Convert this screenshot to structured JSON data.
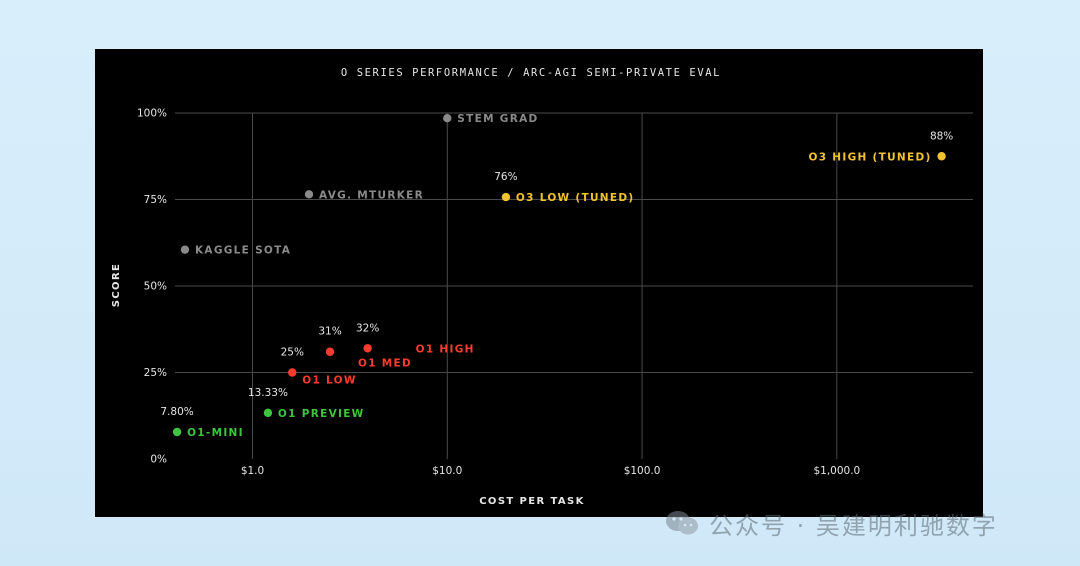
{
  "watermark": {
    "text": "公众号 · 吴建明利驰数字"
  },
  "chart_data": {
    "type": "scatter",
    "title": "O SERIES PERFORMANCE / ARC-AGI SEMI-PRIVATE EVAL",
    "xlabel": "COST PER TASK",
    "ylabel": "SCORE",
    "x_scale": "log",
    "xlim": [
      0.4,
      5000
    ],
    "ylim": [
      0,
      100
    ],
    "x_ticks": [
      {
        "value": 1,
        "label": "$1.0"
      },
      {
        "value": 10,
        "label": "$10.0"
      },
      {
        "value": 100,
        "label": "$100.0"
      },
      {
        "value": 1000,
        "label": "$1,000.0"
      }
    ],
    "y_ticks": [
      {
        "value": 0,
        "label": "0%"
      },
      {
        "value": 25,
        "label": "25%"
      },
      {
        "value": 50,
        "label": "50%"
      },
      {
        "value": 75,
        "label": "75%"
      },
      {
        "value": 100,
        "label": "100%"
      }
    ],
    "grid": true,
    "colors": {
      "baseline": "#8a8a8a",
      "o3": "#f2c230",
      "o1": "#ff3b30",
      "o1_mini": "#3ec43e"
    },
    "points": [
      {
        "label": "STEM GRAD",
        "x": 10,
        "y": 98.5,
        "value_label": "",
        "color": "#8a8a8a"
      },
      {
        "label": "AVG. MTURKER",
        "x": 1.95,
        "y": 76.5,
        "value_label": "",
        "color": "#8a8a8a"
      },
      {
        "label": "KAGGLE SOTA",
        "x": 0.45,
        "y": 60.5,
        "value_label": "",
        "color": "#8a8a8a"
      },
      {
        "label": "O3 HIGH (TUNED)",
        "x": 3450,
        "y": 87.5,
        "value_label": "88%",
        "color": "#f2c230"
      },
      {
        "label": "O3 LOW (TUNED)",
        "x": 20,
        "y": 75.7,
        "value_label": "76%",
        "color": "#f2c230"
      },
      {
        "label": "O1 HIGH",
        "x": 3.9,
        "y": 32,
        "value_label": "32%",
        "color": "#ff3b30"
      },
      {
        "label": "O1 MED",
        "x": 2.5,
        "y": 31,
        "value_label": "31%",
        "color": "#ff3b30"
      },
      {
        "label": "O1 LOW",
        "x": 1.6,
        "y": 25,
        "value_label": "25%",
        "color": "#ff3b30"
      },
      {
        "label": "O1 PREVIEW",
        "x": 1.2,
        "y": 13.33,
        "value_label": "13.33%",
        "color": "#3ec43e"
      },
      {
        "label": "O1-MINI",
        "x": 0.41,
        "y": 7.8,
        "value_label": "7.80%",
        "color": "#3ec43e"
      }
    ]
  }
}
